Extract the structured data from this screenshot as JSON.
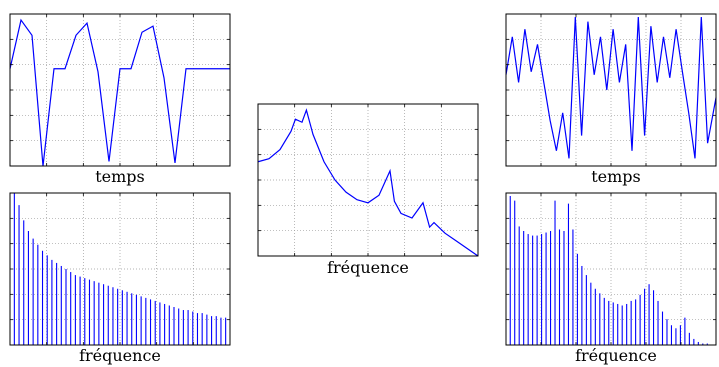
{
  "chart_data": [
    {
      "id": "input-time",
      "type": "line",
      "xlabel": "temps",
      "ylabel": "",
      "grid": true,
      "x": [
        0,
        0.05,
        0.1,
        0.15,
        0.2,
        0.25,
        0.3,
        0.35,
        0.4,
        0.45,
        0.5,
        0.55,
        0.6,
        0.65,
        0.7,
        0.75,
        0.8,
        0.85,
        0.9,
        0.95,
        1
      ],
      "series": [
        {
          "values": [
            0.64,
            0.96,
            0.86,
            0.0,
            0.64,
            0.64,
            0.86,
            0.94,
            0.62,
            0.03,
            0.64,
            0.64,
            0.88,
            0.92,
            0.58,
            0.02,
            0.64,
            0.64,
            0.64,
            0.64,
            0.64
          ]
        }
      ]
    },
    {
      "id": "input-spectrum",
      "type": "bar",
      "xlabel": "fréquence",
      "ylabel": "",
      "grid": true,
      "values": [
        1.0,
        0.92,
        0.82,
        0.75,
        0.7,
        0.66,
        0.62,
        0.59,
        0.56,
        0.54,
        0.52,
        0.5,
        0.48,
        0.46,
        0.45,
        0.44,
        0.43,
        0.42,
        0.41,
        0.4,
        0.39,
        0.38,
        0.37,
        0.36,
        0.35,
        0.34,
        0.33,
        0.32,
        0.31,
        0.3,
        0.29,
        0.28,
        0.27,
        0.26,
        0.25,
        0.24,
        0.23,
        0.23,
        0.22,
        0.21,
        0.21,
        0.2,
        0.19,
        0.19,
        0.18,
        0.18
      ]
    },
    {
      "id": "filter-response",
      "type": "line",
      "xlabel": "fréquence",
      "ylabel": "",
      "grid": true,
      "x": [
        0,
        0.05,
        0.1,
        0.15,
        0.17,
        0.2,
        0.22,
        0.25,
        0.3,
        0.35,
        0.4,
        0.45,
        0.5,
        0.55,
        0.6,
        0.62,
        0.65,
        0.7,
        0.75,
        0.78,
        0.8,
        0.85,
        0.9,
        0.95,
        1.0
      ],
      "series": [
        {
          "values": [
            0.62,
            0.64,
            0.7,
            0.82,
            0.9,
            0.88,
            0.96,
            0.8,
            0.62,
            0.5,
            0.42,
            0.37,
            0.35,
            0.4,
            0.56,
            0.36,
            0.28,
            0.25,
            0.35,
            0.19,
            0.22,
            0.15,
            0.1,
            0.05,
            0.0
          ]
        }
      ]
    },
    {
      "id": "output-time",
      "type": "line",
      "xlabel": "temps",
      "ylabel": "",
      "grid": true,
      "x": [
        0,
        0.03,
        0.06,
        0.09,
        0.12,
        0.15,
        0.18,
        0.21,
        0.24,
        0.27,
        0.3,
        0.33,
        0.36,
        0.39,
        0.42,
        0.45,
        0.48,
        0.51,
        0.54,
        0.57,
        0.6,
        0.63,
        0.66,
        0.69,
        0.72,
        0.75,
        0.78,
        0.81,
        0.84,
        0.87,
        0.9,
        0.93,
        0.96,
        1.0
      ],
      "series": [
        {
          "values": [
            0.6,
            0.85,
            0.55,
            0.9,
            0.62,
            0.8,
            0.55,
            0.3,
            0.1,
            0.35,
            0.05,
            0.98,
            0.2,
            0.95,
            0.6,
            0.85,
            0.5,
            0.9,
            0.55,
            0.8,
            0.1,
            0.98,
            0.2,
            0.92,
            0.55,
            0.85,
            0.58,
            0.9,
            0.62,
            0.35,
            0.05,
            0.98,
            0.15,
            0.45
          ]
        }
      ]
    },
    {
      "id": "output-spectrum",
      "type": "bar",
      "xlabel": "fréquence",
      "ylabel": "",
      "grid": true,
      "values": [
        0.98,
        0.95,
        0.78,
        0.75,
        0.73,
        0.72,
        0.72,
        0.73,
        0.74,
        0.75,
        0.95,
        0.76,
        0.75,
        0.93,
        0.76,
        0.6,
        0.52,
        0.46,
        0.41,
        0.37,
        0.34,
        0.31,
        0.29,
        0.28,
        0.27,
        0.26,
        0.27,
        0.29,
        0.3,
        0.33,
        0.37,
        0.4,
        0.36,
        0.29,
        0.22,
        0.17,
        0.13,
        0.11,
        0.13,
        0.18,
        0.08,
        0.04,
        0.02,
        0.01,
        0.01,
        0.0
      ]
    }
  ],
  "colors": {
    "line": "#0000ff",
    "axis": "#000000",
    "grid": "#9a9a9a",
    "background": "#ffffff"
  }
}
